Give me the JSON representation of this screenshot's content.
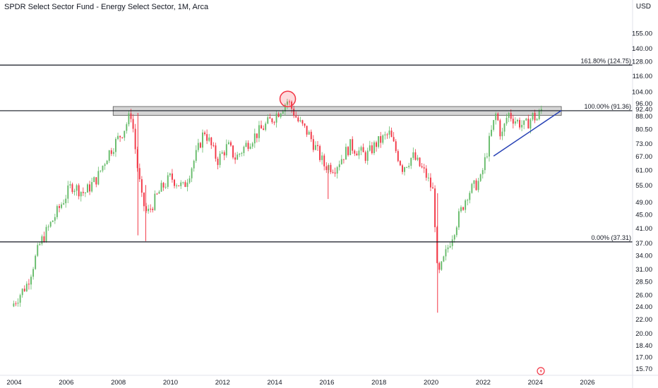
{
  "header": {
    "title": "SPDR Select Sector Fund - Energy Select Sector, 1M, Arca",
    "currency": "USD"
  },
  "chart_data": {
    "type": "candlestick",
    "title": "SPDR Select Sector Fund - Energy Select Sector, 1M, Arca",
    "scale": "log",
    "ylim": [
      15.0,
      175.0
    ],
    "xlim": [
      2003.8,
      2027.0
    ],
    "y_ticks": [
      "155.00",
      "140.00",
      "128.00",
      "116.00",
      "104.00",
      "96.00",
      "92.40",
      "88.00",
      "80.50",
      "73.00",
      "67.00",
      "61.00",
      "55.00",
      "49.00",
      "45.00",
      "41.00",
      "37.00",
      "34.00",
      "31.00",
      "28.50",
      "26.00",
      "24.00",
      "22.00",
      "20.00",
      "18.40",
      "17.00",
      "15.70"
    ],
    "x_ticks": [
      "2004",
      "2006",
      "2008",
      "2010",
      "2012",
      "2014",
      "2016",
      "2018",
      "2020",
      "2022",
      "2024",
      "2026"
    ],
    "levels": [
      {
        "label": "161.80% (124.75)",
        "value": 124.75
      },
      {
        "label": "100.00% (91.36)",
        "value": 91.36
      },
      {
        "label": "0.00% (37.31)",
        "value": 37.31
      }
    ],
    "resistance_zone": {
      "from": 2007.8,
      "to": 2025.0,
      "low": 88.5,
      "high": 94.0
    },
    "trendline": {
      "start": [
        2022.4,
        67.0
      ],
      "end": [
        2025.0,
        91.5
      ]
    },
    "highlight_circle": {
      "x": 2014.5,
      "y": 99.0
    },
    "anchors": [
      [
        2003.9,
        24.0
      ],
      [
        2004.5,
        28.0
      ],
      [
        2005.0,
        37.0
      ],
      [
        2005.6,
        45.0
      ],
      [
        2006.2,
        55.0
      ],
      [
        2006.7,
        52.0
      ],
      [
        2007.2,
        58.0
      ],
      [
        2007.6,
        68.0
      ],
      [
        2008.2,
        80.0
      ],
      [
        2008.5,
        90.0
      ],
      [
        2008.7,
        65.0
      ],
      [
        2008.9,
        50.0
      ],
      [
        2009.1,
        45.0
      ],
      [
        2009.6,
        53.0
      ],
      [
        2010.0,
        58.0
      ],
      [
        2010.5,
        54.0
      ],
      [
        2011.0,
        68.0
      ],
      [
        2011.3,
        80.0
      ],
      [
        2011.8,
        65.0
      ],
      [
        2012.2,
        72.0
      ],
      [
        2012.5,
        66.0
      ],
      [
        2013.0,
        74.0
      ],
      [
        2013.6,
        82.0
      ],
      [
        2014.0,
        88.0
      ],
      [
        2014.5,
        98.0
      ],
      [
        2014.9,
        85.0
      ],
      [
        2015.3,
        78.0
      ],
      [
        2015.9,
        63.0
      ],
      [
        2016.3,
        62.0
      ],
      [
        2016.9,
        72.0
      ],
      [
        2017.5,
        67.0
      ],
      [
        2017.9,
        73.0
      ],
      [
        2018.4,
        78.0
      ],
      [
        2018.9,
        62.0
      ],
      [
        2019.3,
        67.0
      ],
      [
        2019.8,
        59.0
      ],
      [
        2020.1,
        52.0
      ],
      [
        2020.25,
        29.0
      ],
      [
        2020.7,
        37.0
      ],
      [
        2021.0,
        43.0
      ],
      [
        2021.4,
        52.0
      ],
      [
        2021.9,
        57.0
      ],
      [
        2022.3,
        78.0
      ],
      [
        2022.5,
        90.0
      ],
      [
        2022.7,
        76.0
      ],
      [
        2022.95,
        90.0
      ],
      [
        2023.2,
        86.0
      ],
      [
        2023.6,
        82.0
      ],
      [
        2023.9,
        88.0
      ],
      [
        2024.1,
        86.0
      ],
      [
        2024.2,
        92.0
      ]
    ],
    "colors": {
      "up": "#66bb6a",
      "down": "#f23645",
      "lines": "#131722",
      "trend": "#2741b5",
      "zone": "#b3b3b3",
      "highlight": "#f23645"
    }
  }
}
